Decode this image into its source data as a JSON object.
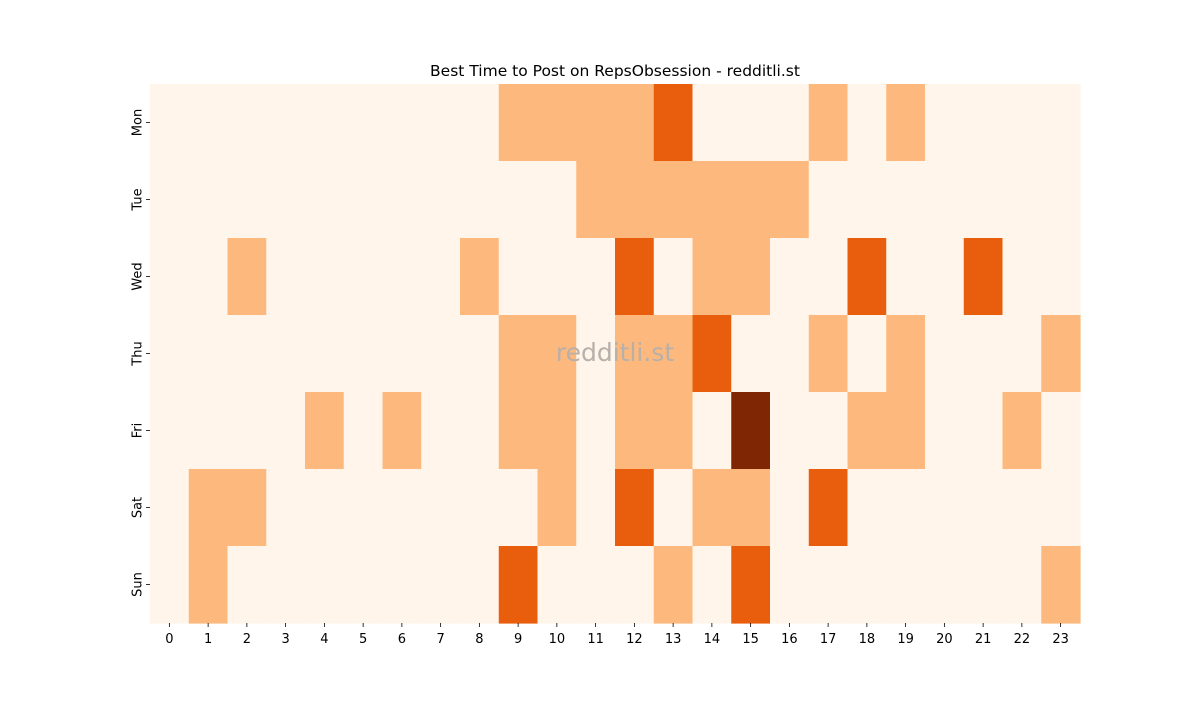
{
  "chart_data": {
    "type": "heatmap",
    "title": "Best Time to Post on RepsObsession - redditli.st",
    "watermark": "redditli.st",
    "x_categories": [
      "0",
      "1",
      "2",
      "3",
      "4",
      "5",
      "6",
      "7",
      "8",
      "9",
      "10",
      "11",
      "12",
      "13",
      "14",
      "15",
      "16",
      "17",
      "18",
      "19",
      "20",
      "21",
      "22",
      "23"
    ],
    "y_categories": [
      "Mon",
      "Tue",
      "Wed",
      "Thu",
      "Fri",
      "Sat",
      "Sun"
    ],
    "values": [
      [
        0,
        0,
        0,
        0,
        0,
        0,
        0,
        0,
        0,
        1,
        1,
        1,
        1,
        2,
        0,
        0,
        0,
        1,
        0,
        1,
        0,
        0,
        0,
        0
      ],
      [
        0,
        0,
        0,
        0,
        0,
        0,
        0,
        0,
        0,
        0,
        0,
        1,
        1,
        1,
        1,
        1,
        1,
        0,
        0,
        0,
        0,
        0,
        0,
        0
      ],
      [
        0,
        0,
        1,
        0,
        0,
        0,
        0,
        0,
        1,
        0,
        0,
        0,
        2,
        0,
        1,
        1,
        0,
        0,
        2,
        0,
        0,
        2,
        0,
        0
      ],
      [
        0,
        0,
        0,
        0,
        0,
        0,
        0,
        0,
        0,
        1,
        1,
        0,
        1,
        1,
        2,
        0,
        0,
        1,
        0,
        1,
        0,
        0,
        0,
        1
      ],
      [
        0,
        0,
        0,
        0,
        1,
        0,
        1,
        0,
        0,
        1,
        1,
        0,
        1,
        1,
        0,
        3,
        0,
        0,
        1,
        1,
        0,
        0,
        1,
        0
      ],
      [
        0,
        1,
        1,
        0,
        0,
        0,
        0,
        0,
        0,
        0,
        1,
        0,
        2,
        0,
        1,
        1,
        0,
        2,
        0,
        0,
        0,
        0,
        0,
        0
      ],
      [
        0,
        1,
        0,
        0,
        0,
        0,
        0,
        0,
        0,
        2,
        0,
        0,
        0,
        1,
        0,
        2,
        0,
        0,
        0,
        0,
        0,
        0,
        0,
        1
      ]
    ],
    "value_range": [
      0,
      3
    ],
    "colormap": "Oranges",
    "level_colors": [
      "#fff5eb",
      "#fdb97d",
      "#e95e0d",
      "#7f2704"
    ],
    "watermark_color": "#b7b0aa",
    "legend": "none"
  }
}
